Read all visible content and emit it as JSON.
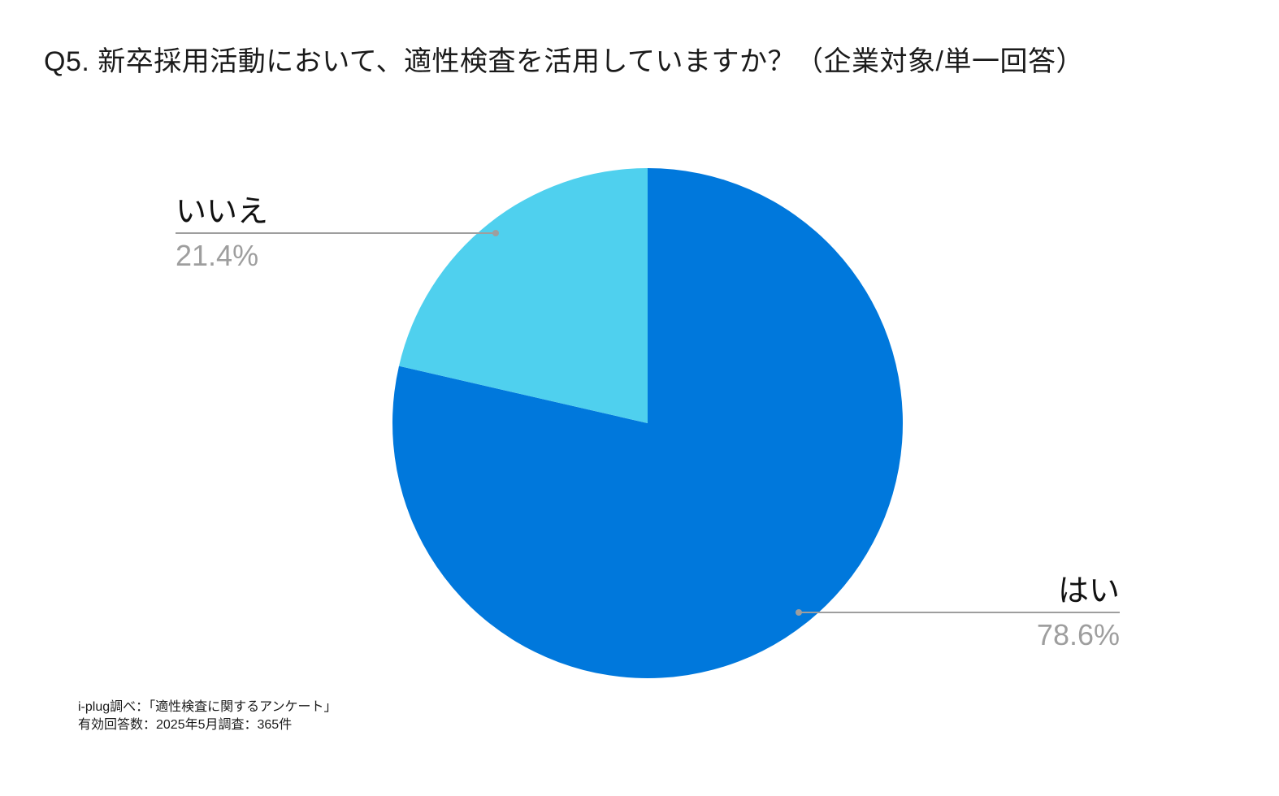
{
  "chart_data": {
    "type": "pie",
    "title": "Q5. 新卒採用活動において、適性検査を活用していますか？（企業対象/単一回答）",
    "start_angle_deg": 0,
    "direction": "clockwise",
    "slices": [
      {
        "label": "はい",
        "value": 78.6,
        "value_label": "78.6%",
        "color": "#0078dc"
      },
      {
        "label": "いいえ",
        "value": 21.4,
        "value_label": "21.4%",
        "color": "#4fd0ee"
      }
    ],
    "legend": "none",
    "label_style": "callout-with-leader-line"
  },
  "source": {
    "line1": "i-plug調べ：「適性検査に関するアンケート」",
    "line2": "有効回答数：2025年5月調査：365件"
  },
  "colors": {
    "leader_line": "#9e9e9e",
    "percent_text": "#9e9e9e",
    "label_text": "#111111"
  }
}
